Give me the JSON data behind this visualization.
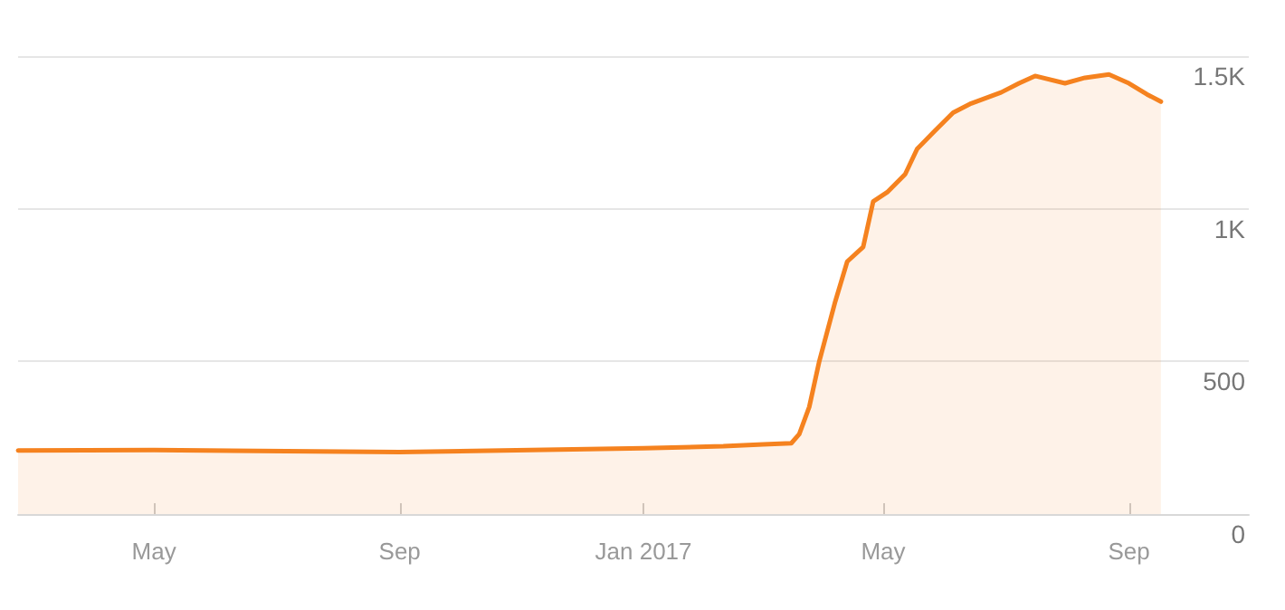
{
  "chart_data": {
    "type": "area",
    "x": [
      "2016-02-23",
      "2016-05-01",
      "2016-09-01",
      "2017-01-01",
      "2017-02-10",
      "2017-03-02",
      "2017-03-16",
      "2017-03-20",
      "2017-03-25",
      "2017-03-30",
      "2017-04-07",
      "2017-04-13",
      "2017-04-21",
      "2017-04-26",
      "2017-05-03",
      "2017-05-12",
      "2017-05-18",
      "2017-05-27",
      "2017-06-05",
      "2017-06-14",
      "2017-06-29",
      "2017-07-08",
      "2017-07-16",
      "2017-07-31",
      "2017-08-10",
      "2017-08-22",
      "2017-09-01",
      "2017-09-10",
      "2017-09-17"
    ],
    "series": [
      {
        "color": "#f5821f",
        "values": [
          208,
          210,
          203,
          216,
          222,
          228,
          232,
          262,
          351,
          500,
          696,
          827,
          875,
          1024,
          1054,
          1113,
          1196,
          1256,
          1315,
          1345,
          1381,
          1411,
          1435,
          1411,
          1429,
          1440,
          1411,
          1375,
          1351
        ]
      }
    ],
    "xlim": [
      "2016-02-23",
      "2017-10-31"
    ],
    "xticks": [
      {
        "value": "2016-05-01",
        "label": "May"
      },
      {
        "value": "2016-09-01",
        "label": "Sep"
      },
      {
        "value": "2017-01-01",
        "label": "Jan 2017"
      },
      {
        "value": "2017-05-01",
        "label": "May"
      },
      {
        "value": "2017-09-01",
        "label": "Sep"
      }
    ],
    "ylim": [
      0,
      1500
    ],
    "yticks": [
      0,
      500,
      {
        "value": 1000,
        "label": "1K"
      },
      {
        "value": 1500,
        "label": "1.5K"
      }
    ],
    "grid": "y",
    "marker": "none",
    "line_style": "solid"
  }
}
